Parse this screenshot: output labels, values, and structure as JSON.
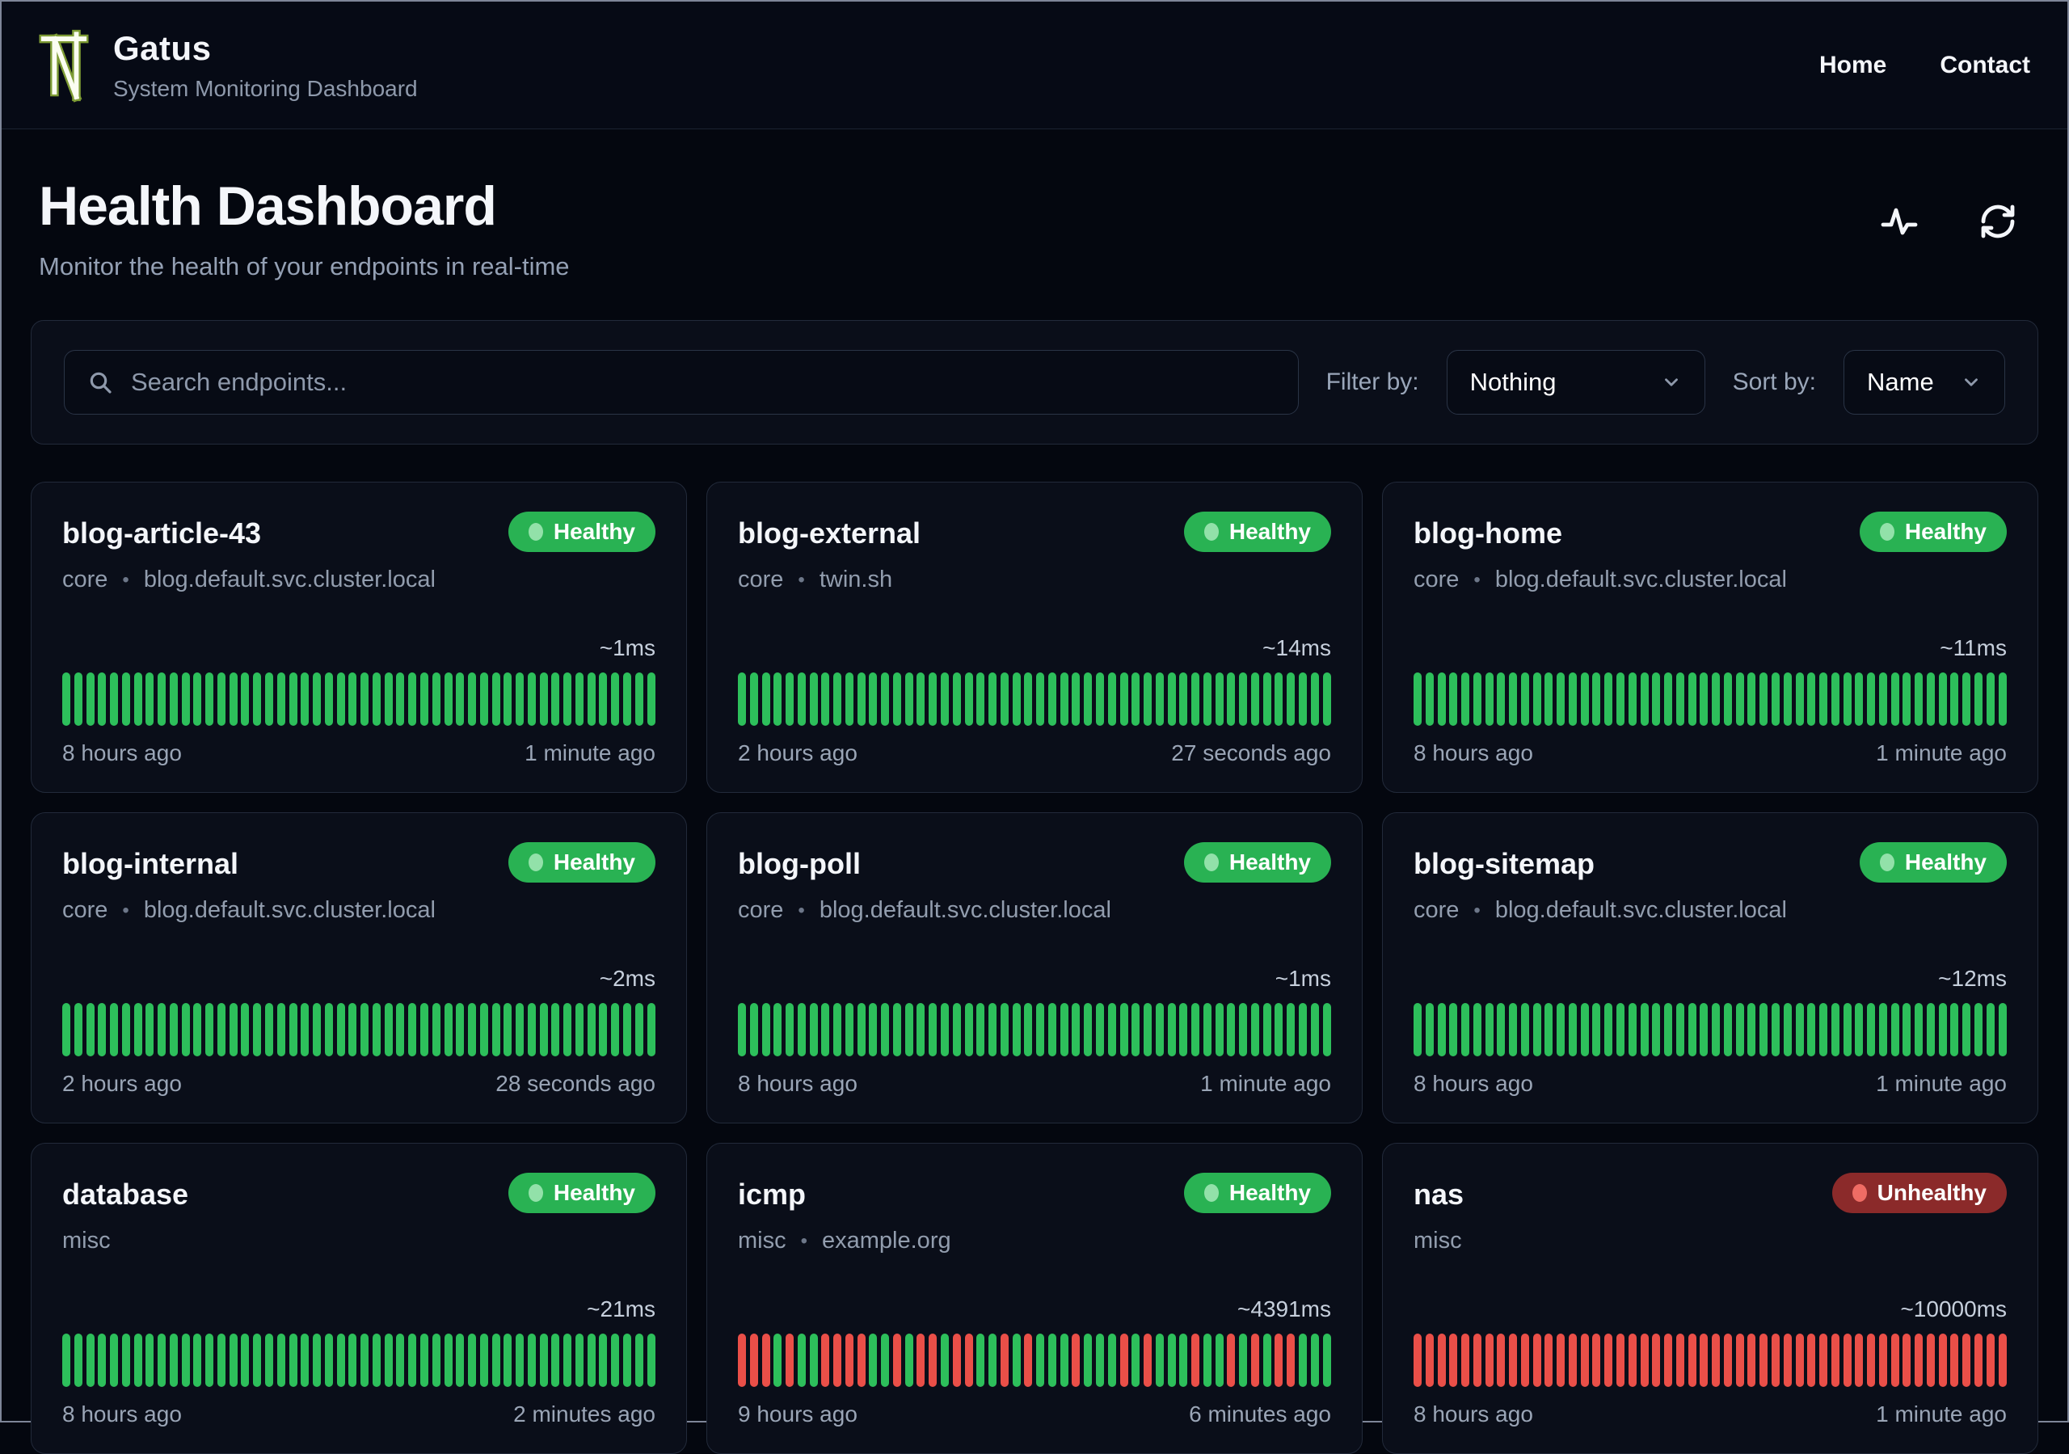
{
  "header": {
    "app_name": "Gatus",
    "app_subtitle": "System Monitoring Dashboard",
    "nav": [
      {
        "label": "Home"
      },
      {
        "label": "Contact"
      }
    ]
  },
  "hero": {
    "title": "Health Dashboard",
    "subtitle": "Monitor the health of your endpoints in real-time"
  },
  "toolbar": {
    "search_placeholder": "Search endpoints...",
    "filter_label": "Filter by:",
    "filter_value": "Nothing",
    "sort_label": "Sort by:",
    "sort_value": "Name"
  },
  "colors": {
    "healthy_badge": "#29b253",
    "unhealthy_badge": "#8b2a2a",
    "bar_ok": "#2dbf5b",
    "bar_fail": "#ea4f48",
    "logo_green": "#9db93f"
  },
  "cards": [
    {
      "name": "blog-article-43",
      "group": "core",
      "target": "blog.default.svc.cluster.local",
      "status": "Healthy",
      "latency": "~1ms",
      "oldest": "8 hours ago",
      "newest": "1 minute ago",
      "bars": "GGGGGGGGGGGGGGGGGGGGGGGGGGGGGGGGGGGGGGGGGGGGGGGGGG"
    },
    {
      "name": "blog-external",
      "group": "core",
      "target": "twin.sh",
      "status": "Healthy",
      "latency": "~14ms",
      "oldest": "2 hours ago",
      "newest": "27 seconds ago",
      "bars": "GGGGGGGGGGGGGGGGGGGGGGGGGGGGGGGGGGGGGGGGGGGGGGGGGG"
    },
    {
      "name": "blog-home",
      "group": "core",
      "target": "blog.default.svc.cluster.local",
      "status": "Healthy",
      "latency": "~11ms",
      "oldest": "8 hours ago",
      "newest": "1 minute ago",
      "bars": "GGGGGGGGGGGGGGGGGGGGGGGGGGGGGGGGGGGGGGGGGGGGGGGGGG"
    },
    {
      "name": "blog-internal",
      "group": "core",
      "target": "blog.default.svc.cluster.local",
      "status": "Healthy",
      "latency": "~2ms",
      "oldest": "2 hours ago",
      "newest": "28 seconds ago",
      "bars": "GGGGGGGGGGGGGGGGGGGGGGGGGGGGGGGGGGGGGGGGGGGGGGGGGG"
    },
    {
      "name": "blog-poll",
      "group": "core",
      "target": "blog.default.svc.cluster.local",
      "status": "Healthy",
      "latency": "~1ms",
      "oldest": "8 hours ago",
      "newest": "1 minute ago",
      "bars": "GGGGGGGGGGGGGGGGGGGGGGGGGGGGGGGGGGGGGGGGGGGGGGGGGG"
    },
    {
      "name": "blog-sitemap",
      "group": "core",
      "target": "blog.default.svc.cluster.local",
      "status": "Healthy",
      "latency": "~12ms",
      "oldest": "8 hours ago",
      "newest": "1 minute ago",
      "bars": "GGGGGGGGGGGGGGGGGGGGGGGGGGGGGGGGGGGGGGGGGGGGGGGGGG"
    },
    {
      "name": "database",
      "group": "misc",
      "target": null,
      "status": "Healthy",
      "latency": "~21ms",
      "oldest": "8 hours ago",
      "newest": "2 minutes ago",
      "bars": "GGGGGGGGGGGGGGGGGGGGGGGGGGGGGGGGGGGGGGGGGGGGGGGGGG"
    },
    {
      "name": "icmp",
      "group": "misc",
      "target": "example.org",
      "status": "Healthy",
      "latency": "~4391ms",
      "oldest": "9 hours ago",
      "newest": "6 minutes ago",
      "bars": "RRRGRGGRRRRGGRGRRGRRGGRGRGGGRGGGRGRGGGRGGRGRGRRGGG"
    },
    {
      "name": "nas",
      "group": "misc",
      "target": null,
      "status": "Unhealthy",
      "latency": "~10000ms",
      "oldest": "8 hours ago",
      "newest": "1 minute ago",
      "bars": "RRRRRRRRRRRRRRRRRRRRRRRRRRRRRRRRRRRRRRRRRRRRRRRRRR"
    }
  ]
}
